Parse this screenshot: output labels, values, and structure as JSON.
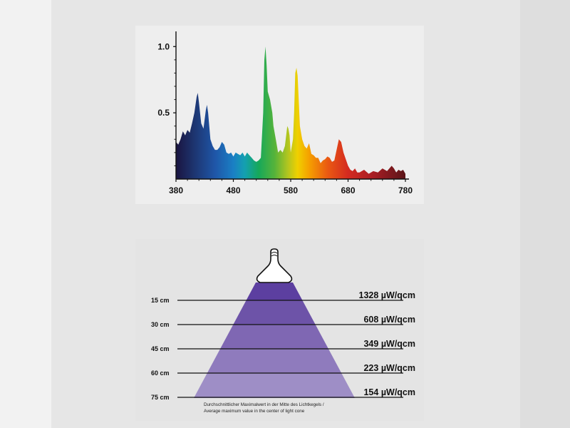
{
  "chart_data": [
    {
      "type": "area",
      "title": "",
      "xlabel": "",
      "ylabel": "",
      "x_ticks": [
        "380",
        "480",
        "580",
        "680",
        "780"
      ],
      "y_ticks": [
        "0.5",
        "1.0"
      ],
      "xlim": [
        380,
        780
      ],
      "ylim": [
        0,
        1.05
      ],
      "grid": false,
      "fill": "visible-spectrum-gradient",
      "series": [
        {
          "x": [
            380,
            384,
            388,
            392,
            396,
            400,
            404,
            408,
            412,
            416,
            418,
            420,
            424,
            428,
            432,
            434,
            436,
            440,
            444,
            448,
            452,
            456,
            460,
            464,
            468,
            472,
            476,
            480,
            484,
            488,
            492,
            496,
            500,
            504,
            508,
            512,
            516,
            520,
            524,
            528,
            532,
            534,
            536,
            538,
            540,
            544,
            548,
            550,
            554,
            558,
            562,
            566,
            570,
            574,
            576,
            578,
            580,
            584,
            586,
            588,
            590,
            592,
            596,
            600,
            604,
            608,
            612,
            616,
            620,
            624,
            628,
            632,
            636,
            640,
            644,
            648,
            652,
            656,
            660,
            664,
            668,
            672,
            676,
            680,
            684,
            688,
            692,
            696,
            700,
            708,
            716,
            724,
            732,
            740,
            748,
            756,
            760,
            764,
            768,
            772,
            776,
            780
          ],
          "values": [
            0.28,
            0.26,
            0.3,
            0.36,
            0.33,
            0.37,
            0.35,
            0.42,
            0.5,
            0.62,
            0.65,
            0.58,
            0.42,
            0.38,
            0.52,
            0.56,
            0.5,
            0.3,
            0.25,
            0.22,
            0.22,
            0.24,
            0.28,
            0.26,
            0.2,
            0.19,
            0.2,
            0.17,
            0.2,
            0.19,
            0.18,
            0.2,
            0.17,
            0.2,
            0.18,
            0.16,
            0.14,
            0.13,
            0.14,
            0.16,
            0.5,
            0.9,
            1.0,
            0.86,
            0.66,
            0.6,
            0.5,
            0.4,
            0.3,
            0.2,
            0.22,
            0.2,
            0.25,
            0.4,
            0.38,
            0.33,
            0.2,
            0.3,
            0.5,
            0.8,
            0.84,
            0.78,
            0.4,
            0.3,
            0.25,
            0.23,
            0.27,
            0.19,
            0.18,
            0.16,
            0.16,
            0.12,
            0.14,
            0.15,
            0.17,
            0.16,
            0.13,
            0.14,
            0.22,
            0.3,
            0.28,
            0.2,
            0.15,
            0.1,
            0.07,
            0.06,
            0.08,
            0.05,
            0.05,
            0.07,
            0.04,
            0.06,
            0.05,
            0.08,
            0.06,
            0.1,
            0.08,
            0.05,
            0.07,
            0.06,
            0.07,
            0.04
          ]
        }
      ]
    },
    {
      "type": "table",
      "title": "",
      "distance_labels": [
        "15 cm",
        "30 cm",
        "45 cm",
        "60 cm",
        "75 cm"
      ],
      "distances_cm": [
        15,
        30,
        45,
        60,
        75
      ],
      "intensity_labels": [
        "1328 µW/qcm",
        "608 µW/qcm",
        "349 µW/qcm",
        "223 µW/qcm",
        "154 µW/qcm"
      ],
      "intensity_values": [
        1328,
        608,
        349,
        223,
        154
      ],
      "unit": "µW/qcm",
      "footnote_line1": "Durchschnittlicher Maximalwert in der Mitte des Lichtkegels /",
      "footnote_line2": "Average maximum value in the center of light cone",
      "colors": {
        "band_1": "#5c3fa0",
        "band_2": "#6d53a8",
        "band_3": "#7f67b3",
        "band_4": "#8f7bbd",
        "band_5": "#9e8ec6"
      }
    }
  ]
}
